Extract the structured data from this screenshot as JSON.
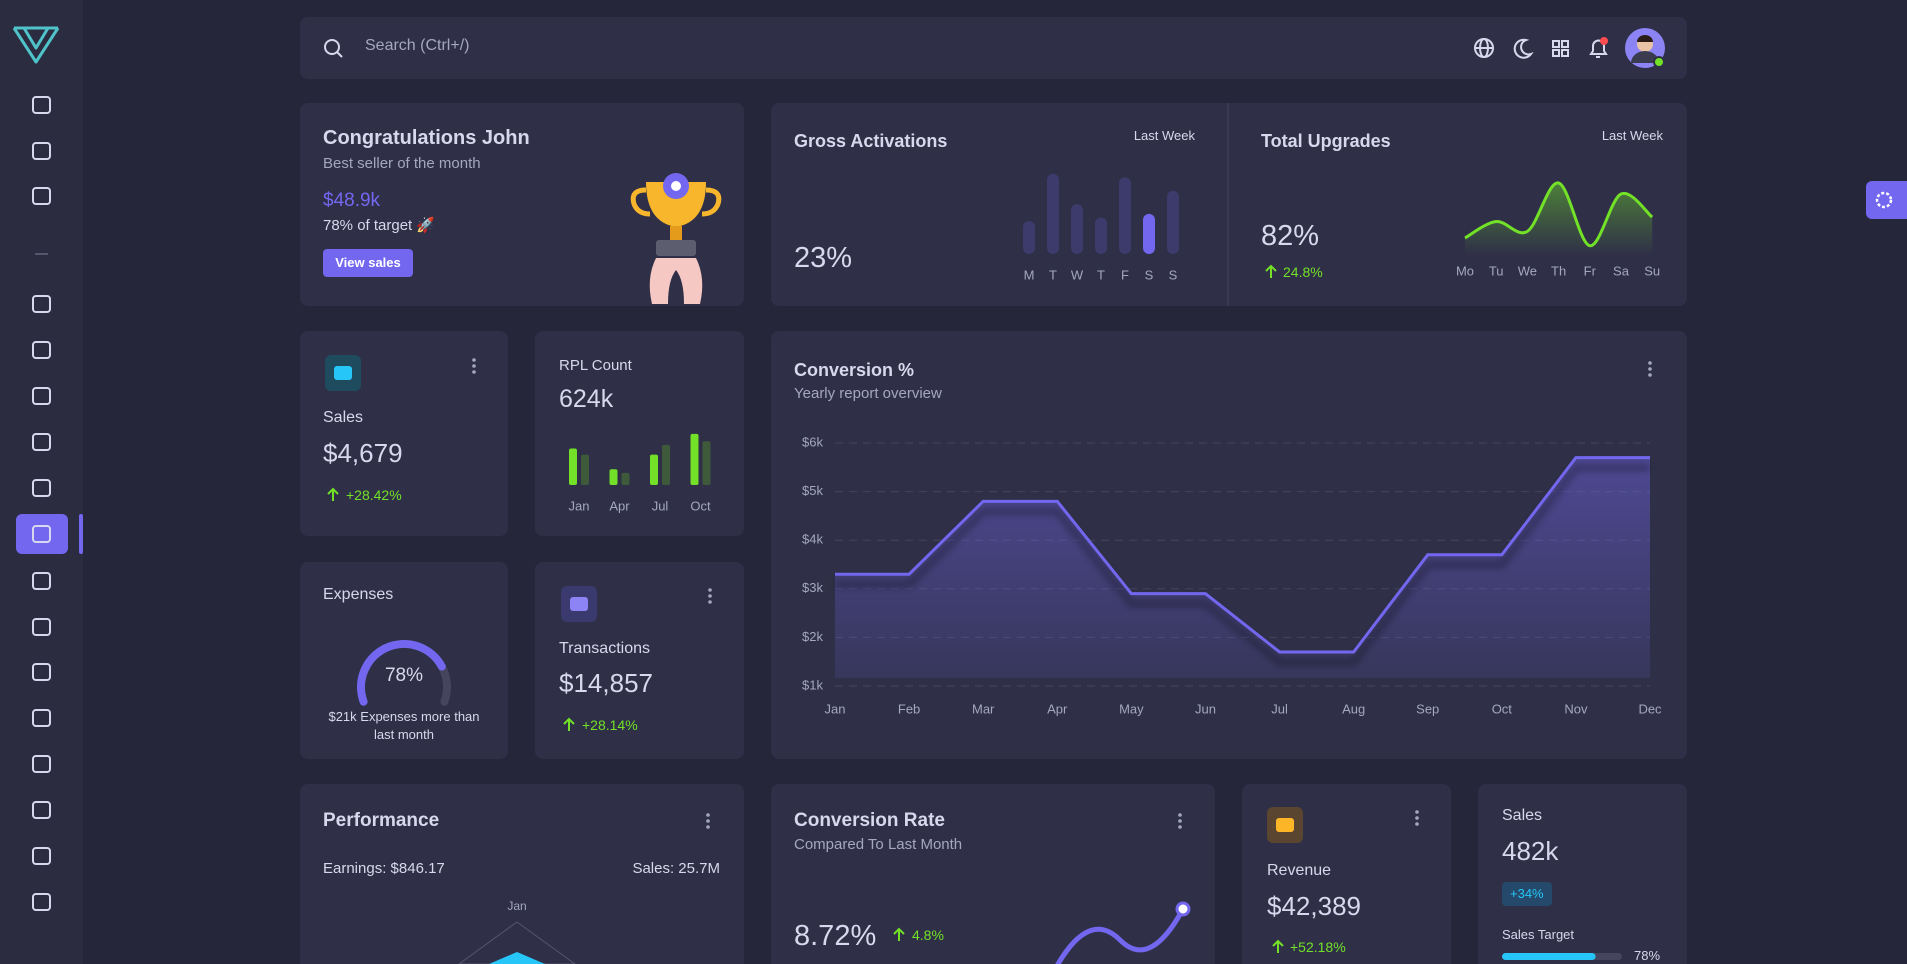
{
  "topbar": {
    "search_placeholder": "Search (Ctrl+/)"
  },
  "congrats": {
    "title": "Congratulations John",
    "subtitle": "Best seller of the month",
    "amount": "$48.9k",
    "target": "78% of target 🚀",
    "button": "View sales"
  },
  "gross_activations": {
    "title": "Gross Activations",
    "period": "Last Week",
    "value": "23%",
    "chart": {
      "type": "bar",
      "categories": [
        "M",
        "T",
        "W",
        "T",
        "F",
        "S",
        "S"
      ],
      "values": [
        27,
        66,
        41,
        30,
        63,
        33,
        52
      ],
      "colors": [
        "#3d3b6b",
        "#3d3b6b",
        "#3d3b6b",
        "#3d3b6b",
        "#3d3b6b",
        "#7367f0",
        "#3d3b6b"
      ]
    }
  },
  "total_upgrades": {
    "title": "Total Upgrades",
    "period": "Last Week",
    "value": "82%",
    "change": "24.8%",
    "chart": {
      "type": "line",
      "categories": [
        "Mo",
        "Tu",
        "We",
        "Th",
        "Fr",
        "Sa",
        "Su"
      ],
      "values": [
        10,
        25,
        16,
        60,
        3,
        50,
        29
      ],
      "color": "#72e128"
    }
  },
  "sales_card": {
    "label": "Sales",
    "value": "$4,679",
    "change": "+28.42%"
  },
  "rpl_count": {
    "title": "RPL Count",
    "value": "624k",
    "chart": {
      "type": "bar",
      "categories": [
        "Jan",
        "Apr",
        "Jul",
        "Oct"
      ],
      "series": [
        {
          "color": "#72e128",
          "values": [
            30,
            13,
            25,
            42
          ]
        },
        {
          "color": "#3f5a3a",
          "values": [
            25,
            10,
            33,
            36
          ]
        }
      ]
    }
  },
  "expenses": {
    "title": "Expenses",
    "gauge_value": 78,
    "gauge_label": "78%",
    "note": "$21k Expenses more than last month"
  },
  "transactions": {
    "label": "Transactions",
    "value": "$14,857",
    "change": "+28.14%"
  },
  "conversion_chart": {
    "title": "Conversion %",
    "subtitle": "Yearly report overview",
    "chart": {
      "type": "area",
      "categories": [
        "Jan",
        "Feb",
        "Mar",
        "Apr",
        "May",
        "Jun",
        "Jul",
        "Aug",
        "Sep",
        "Oct",
        "Nov",
        "Dec"
      ],
      "values": [
        3300,
        3300,
        4800,
        4800,
        2900,
        2900,
        1700,
        1700,
        3700,
        3700,
        5700,
        5700
      ],
      "ylim": [
        1000,
        6000
      ],
      "yticks": [
        {
          "value": 1000,
          "label": "$1k"
        },
        {
          "value": 2000,
          "label": "$2k"
        },
        {
          "value": 3000,
          "label": "$3k"
        },
        {
          "value": 4000,
          "label": "$4k"
        },
        {
          "value": 5000,
          "label": "$5k"
        },
        {
          "value": 6000,
          "label": "$6k"
        }
      ],
      "grid": true,
      "color": "#7367f0"
    }
  },
  "performance": {
    "title": "Performance",
    "earnings": "Earnings: $846.17",
    "sales": "Sales: 25.7M",
    "radar_label": "Jan"
  },
  "conversion_rate": {
    "title": "Conversion Rate",
    "subtitle": "Compared To Last Month",
    "value": "8.72%",
    "change": "4.8%"
  },
  "revenue": {
    "label": "Revenue",
    "value": "$42,389",
    "change": "+52.18%"
  },
  "sales_target": {
    "title": "Sales",
    "value": "482k",
    "badge": "+34%",
    "target_label": "Sales Target",
    "progress": 78,
    "progress_label": "78%"
  }
}
